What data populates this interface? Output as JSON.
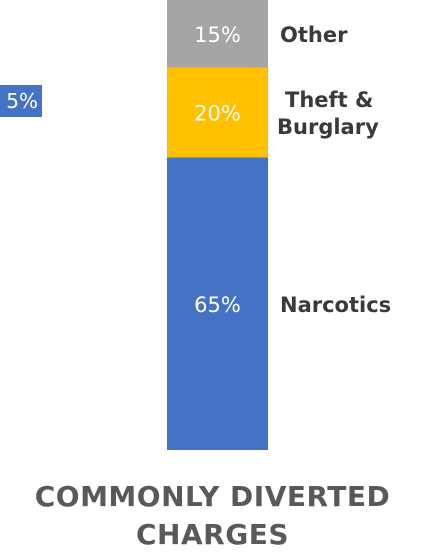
{
  "chart_data": {
    "type": "bar",
    "stacked": true,
    "unit": "%",
    "ylim": [
      0,
      100
    ],
    "series": [
      {
        "name": "Narcotics",
        "value": 65,
        "label": "65%",
        "color": "#4472c4",
        "category_lines": [
          "Narcotics"
        ]
      },
      {
        "name": "Theft & Burglary",
        "value": 20,
        "label": "20%",
        "color": "#ffc000",
        "category_lines": [
          "Theft &",
          "Burglary"
        ]
      },
      {
        "name": "Other",
        "value": 15,
        "label": "15%",
        "color": "#a5a5a5",
        "category_lines": [
          "Other"
        ]
      }
    ],
    "title_lines": [
      "COMMONLY DIVERTED",
      "CHARGES"
    ],
    "clipped_left_label": "5%"
  }
}
